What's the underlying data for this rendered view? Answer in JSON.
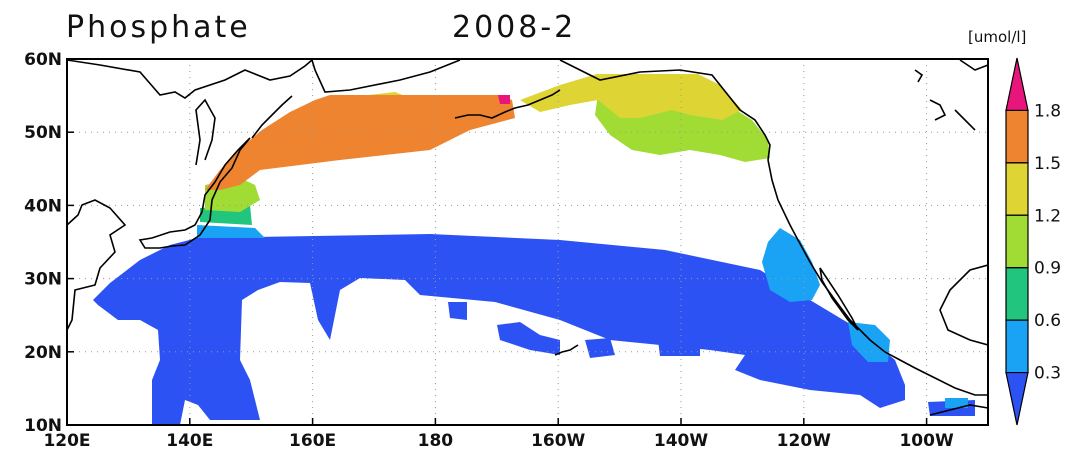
{
  "title": {
    "variable": "Phosphate",
    "date": "2008-2"
  },
  "map": {
    "lat_axis": {
      "labels": [
        "60N",
        "50N",
        "40N",
        "30N",
        "20N",
        "10N"
      ],
      "values": [
        60,
        50,
        40,
        30,
        20,
        10
      ]
    },
    "lon_axis": {
      "labels": [
        "120E",
        "140E",
        "160E",
        "180",
        "160W",
        "140W",
        "120W",
        "100W"
      ],
      "values": [
        120,
        140,
        160,
        180,
        200,
        220,
        240,
        260
      ]
    },
    "extent": {
      "lon_min": 120,
      "lon_max": 270,
      "lat_min": 10,
      "lat_max": 60
    },
    "gridlines": "dotted"
  },
  "colorbar": {
    "units": "[umol/l]",
    "ticks": [
      "1.8",
      "1.5",
      "1.2",
      "0.9",
      "0.6",
      "0.3"
    ],
    "colors": [
      "#e8157d",
      "#ef8430",
      "#ded433",
      "#a0dc34",
      "#22c57e",
      "#1aa3f4",
      "#2c52f4"
    ]
  }
}
